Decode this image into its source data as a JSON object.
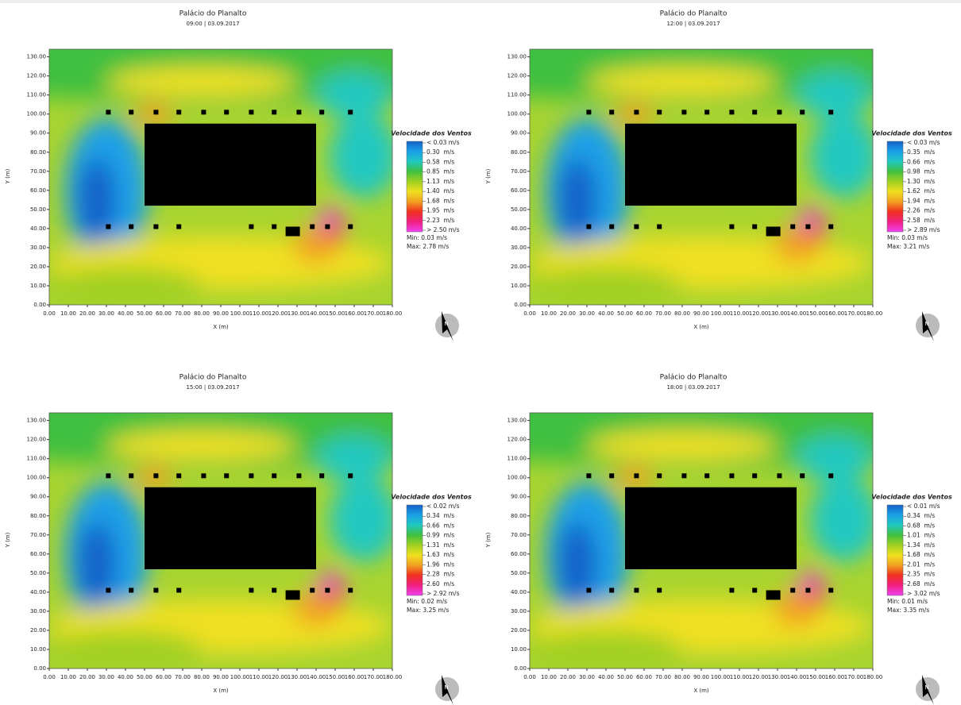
{
  "chart_data": [
    {
      "type": "wind-field",
      "title": "Palácio do Planalto",
      "subtitle": "09:00 | 03.09.2017",
      "x_label": "X (m)",
      "y_label": "Y (m)",
      "xlim": [
        0,
        180
      ],
      "ylim": [
        0,
        134
      ],
      "xticks": [
        {
          "value": 0,
          "label": "0.00"
        },
        {
          "value": 10,
          "label": "10.00"
        },
        {
          "value": 20,
          "label": "20.00"
        },
        {
          "value": 30,
          "label": "30.00"
        },
        {
          "value": 40,
          "label": "40.00"
        },
        {
          "value": 50,
          "label": "50.00"
        },
        {
          "value": 60,
          "label": "60.00"
        },
        {
          "value": 70,
          "label": "70.00"
        },
        {
          "value": 80,
          "label": "80.00"
        },
        {
          "value": 90,
          "label": "90.00"
        },
        {
          "value": 100,
          "label": "100.00"
        },
        {
          "value": 110,
          "label": "110.00"
        },
        {
          "value": 120,
          "label": "120.00"
        },
        {
          "value": 130,
          "label": "130.00"
        },
        {
          "value": 140,
          "label": "140.00"
        },
        {
          "value": 150,
          "label": "150.00"
        },
        {
          "value": 160,
          "label": "160.00"
        },
        {
          "value": 170,
          "label": "170.00"
        },
        {
          "value": 180,
          "label": "180.00"
        }
      ],
      "yticks": [
        {
          "value": 0,
          "label": "0.00"
        },
        {
          "value": 10,
          "label": "10.00"
        },
        {
          "value": 20,
          "label": "20.00"
        },
        {
          "value": 30,
          "label": "30.00"
        },
        {
          "value": 40,
          "label": "40.00"
        },
        {
          "value": 50,
          "label": "50.00"
        },
        {
          "value": 60,
          "label": "60.00"
        },
        {
          "value": 70,
          "label": "70.00"
        },
        {
          "value": 80,
          "label": "80.00"
        },
        {
          "value": 90,
          "label": "90.00"
        },
        {
          "value": 100,
          "label": "100.00"
        },
        {
          "value": 110,
          "label": "110.00"
        },
        {
          "value": 120,
          "label": "120.00"
        },
        {
          "value": 130,
          "label": "130.00"
        }
      ],
      "legend": {
        "title": "Velocidade dos Ventos",
        "labels": [
          "< 0.03 m/s",
          "0.30  m/s",
          "0.58  m/s",
          "0.85  m/s",
          "1.13  m/s",
          "1.40  m/s",
          "1.68  m/s",
          "1.95  m/s",
          "2.23  m/s",
          "> 2.50 m/s"
        ],
        "min": "Min: 0.03 m/s",
        "max": "Max: 2.78 m/s",
        "colors": [
          "#1560c8",
          "#1aa0e8",
          "#20c8c0",
          "#40c040",
          "#a0d020",
          "#f0e020",
          "#f0a020",
          "#f03020",
          "#f02080",
          "#f040f0"
        ]
      },
      "compass": "N"
    },
    {
      "type": "wind-field",
      "title": "Palácio do Planalto",
      "subtitle": "12:00 | 03.09.2017",
      "x_label": "X (m)",
      "y_label": "Y (m)",
      "xlim": [
        0,
        180
      ],
      "ylim": [
        0,
        134
      ],
      "xticks": [
        {
          "value": 0,
          "label": "0.00"
        },
        {
          "value": 10,
          "label": "10.00"
        },
        {
          "value": 20,
          "label": "20.00"
        },
        {
          "value": 30,
          "label": "30.00"
        },
        {
          "value": 40,
          "label": "40.00"
        },
        {
          "value": 50,
          "label": "50.00"
        },
        {
          "value": 60,
          "label": "60.00"
        },
        {
          "value": 70,
          "label": "70.00"
        },
        {
          "value": 80,
          "label": "80.00"
        },
        {
          "value": 90,
          "label": "90.00"
        },
        {
          "value": 100,
          "label": "100.00"
        },
        {
          "value": 110,
          "label": "110.00"
        },
        {
          "value": 120,
          "label": "120.00"
        },
        {
          "value": 130,
          "label": "130.00"
        },
        {
          "value": 140,
          "label": "140.00"
        },
        {
          "value": 150,
          "label": "150.00"
        },
        {
          "value": 160,
          "label": "160.00"
        },
        {
          "value": 170,
          "label": "170.00"
        },
        {
          "value": 180,
          "label": "180.00"
        }
      ],
      "yticks": [
        {
          "value": 0,
          "label": "0.00"
        },
        {
          "value": 10,
          "label": "10.00"
        },
        {
          "value": 20,
          "label": "20.00"
        },
        {
          "value": 30,
          "label": "30.00"
        },
        {
          "value": 40,
          "label": "40.00"
        },
        {
          "value": 50,
          "label": "50.00"
        },
        {
          "value": 60,
          "label": "60.00"
        },
        {
          "value": 70,
          "label": "70.00"
        },
        {
          "value": 80,
          "label": "80.00"
        },
        {
          "value": 90,
          "label": "90.00"
        },
        {
          "value": 100,
          "label": "100.00"
        },
        {
          "value": 110,
          "label": "110.00"
        },
        {
          "value": 120,
          "label": "120.00"
        },
        {
          "value": 130,
          "label": "130.00"
        }
      ],
      "legend": {
        "title": "Velocidade dos Ventos",
        "labels": [
          "< 0.03 m/s",
          "0.35  m/s",
          "0.66  m/s",
          "0.98  m/s",
          "1.30  m/s",
          "1.62  m/s",
          "1.94  m/s",
          "2.26  m/s",
          "2.58  m/s",
          "> 2.89 m/s"
        ],
        "min": "Min: 0.03 m/s",
        "max": "Max: 3.21 m/s",
        "colors": [
          "#1560c8",
          "#1aa0e8",
          "#20c8c0",
          "#40c040",
          "#a0d020",
          "#f0e020",
          "#f0a020",
          "#f03020",
          "#f02080",
          "#f040f0"
        ]
      },
      "compass": "N"
    },
    {
      "type": "wind-field",
      "title": "Palácio do Planalto",
      "subtitle": "15:00 | 03.09.2017",
      "x_label": "X (m)",
      "y_label": "Y (m)",
      "xlim": [
        0,
        180
      ],
      "ylim": [
        0,
        134
      ],
      "xticks": [
        {
          "value": 0,
          "label": "0.00"
        },
        {
          "value": 10,
          "label": "10.00"
        },
        {
          "value": 20,
          "label": "20.00"
        },
        {
          "value": 30,
          "label": "30.00"
        },
        {
          "value": 40,
          "label": "40.00"
        },
        {
          "value": 50,
          "label": "50.00"
        },
        {
          "value": 60,
          "label": "60.00"
        },
        {
          "value": 70,
          "label": "70.00"
        },
        {
          "value": 80,
          "label": "80.00"
        },
        {
          "value": 90,
          "label": "90.00"
        },
        {
          "value": 100,
          "label": "100.00"
        },
        {
          "value": 110,
          "label": "110.00"
        },
        {
          "value": 120,
          "label": "120.00"
        },
        {
          "value": 130,
          "label": "130.00"
        },
        {
          "value": 140,
          "label": "140.00"
        },
        {
          "value": 150,
          "label": "150.00"
        },
        {
          "value": 160,
          "label": "160.00"
        },
        {
          "value": 170,
          "label": "170.00"
        },
        {
          "value": 180,
          "label": "180.00"
        }
      ],
      "yticks": [
        {
          "value": 0,
          "label": "0.00"
        },
        {
          "value": 10,
          "label": "10.00"
        },
        {
          "value": 20,
          "label": "20.00"
        },
        {
          "value": 30,
          "label": "30.00"
        },
        {
          "value": 40,
          "label": "40.00"
        },
        {
          "value": 50,
          "label": "50.00"
        },
        {
          "value": 60,
          "label": "60.00"
        },
        {
          "value": 70,
          "label": "70.00"
        },
        {
          "value": 80,
          "label": "80.00"
        },
        {
          "value": 90,
          "label": "90.00"
        },
        {
          "value": 100,
          "label": "100.00"
        },
        {
          "value": 110,
          "label": "110.00"
        },
        {
          "value": 120,
          "label": "120.00"
        },
        {
          "value": 130,
          "label": "130.00"
        }
      ],
      "legend": {
        "title": "Velocidade dos Ventos",
        "labels": [
          "< 0.02 m/s",
          "0.34  m/s",
          "0.66  m/s",
          "0.99  m/s",
          "1.31  m/s",
          "1.63  m/s",
          "1.96  m/s",
          "2.28  m/s",
          "2.60  m/s",
          "> 2.92 m/s"
        ],
        "min": "Min: 0.02 m/s",
        "max": "Max: 3.25 m/s",
        "colors": [
          "#1560c8",
          "#1aa0e8",
          "#20c8c0",
          "#40c040",
          "#a0d020",
          "#f0e020",
          "#f0a020",
          "#f03020",
          "#f02080",
          "#f040f0"
        ]
      },
      "compass": "N"
    },
    {
      "type": "wind-field",
      "title": "Palácio do Planalto",
      "subtitle": "18:00 | 03.09.2017",
      "x_label": "X (m)",
      "y_label": "Y (m)",
      "xlim": [
        0,
        180
      ],
      "ylim": [
        0,
        134
      ],
      "xticks": [
        {
          "value": 0,
          "label": "0.00"
        },
        {
          "value": 10,
          "label": "10.00"
        },
        {
          "value": 20,
          "label": "20.00"
        },
        {
          "value": 30,
          "label": "30.00"
        },
        {
          "value": 40,
          "label": "40.00"
        },
        {
          "value": 50,
          "label": "50.00"
        },
        {
          "value": 60,
          "label": "60.00"
        },
        {
          "value": 70,
          "label": "70.00"
        },
        {
          "value": 80,
          "label": "80.00"
        },
        {
          "value": 90,
          "label": "90.00"
        },
        {
          "value": 100,
          "label": "100.00"
        },
        {
          "value": 110,
          "label": "110.00"
        },
        {
          "value": 120,
          "label": "120.00"
        },
        {
          "value": 130,
          "label": "130.00"
        },
        {
          "value": 140,
          "label": "140.00"
        },
        {
          "value": 150,
          "label": "150.00"
        },
        {
          "value": 160,
          "label": "160.00"
        },
        {
          "value": 170,
          "label": "170.00"
        },
        {
          "value": 180,
          "label": "180.00"
        }
      ],
      "yticks": [
        {
          "value": 0,
          "label": "0.00"
        },
        {
          "value": 10,
          "label": "10.00"
        },
        {
          "value": 20,
          "label": "20.00"
        },
        {
          "value": 30,
          "label": "30.00"
        },
        {
          "value": 40,
          "label": "40.00"
        },
        {
          "value": 50,
          "label": "50.00"
        },
        {
          "value": 60,
          "label": "60.00"
        },
        {
          "value": 70,
          "label": "70.00"
        },
        {
          "value": 80,
          "label": "80.00"
        },
        {
          "value": 90,
          "label": "90.00"
        },
        {
          "value": 100,
          "label": "100.00"
        },
        {
          "value": 110,
          "label": "110.00"
        },
        {
          "value": 120,
          "label": "120.00"
        },
        {
          "value": 130,
          "label": "130.00"
        }
      ],
      "legend": {
        "title": "Velocidade dos Ventos",
        "labels": [
          "< 0.01 m/s",
          "0.34  m/s",
          "0.68  m/s",
          "1.01  m/s",
          "1.34  m/s",
          "1.68  m/s",
          "2.01  m/s",
          "2.35  m/s",
          "2.68  m/s",
          "> 3.02 m/s"
        ],
        "min": "Min: 0.01 m/s",
        "max": "Max: 3.35 m/s",
        "colors": [
          "#1560c8",
          "#1aa0e8",
          "#20c8c0",
          "#40c040",
          "#a0d020",
          "#f0e020",
          "#f0a020",
          "#f03020",
          "#f02080",
          "#f040f0"
        ]
      },
      "compass": "N"
    }
  ]
}
